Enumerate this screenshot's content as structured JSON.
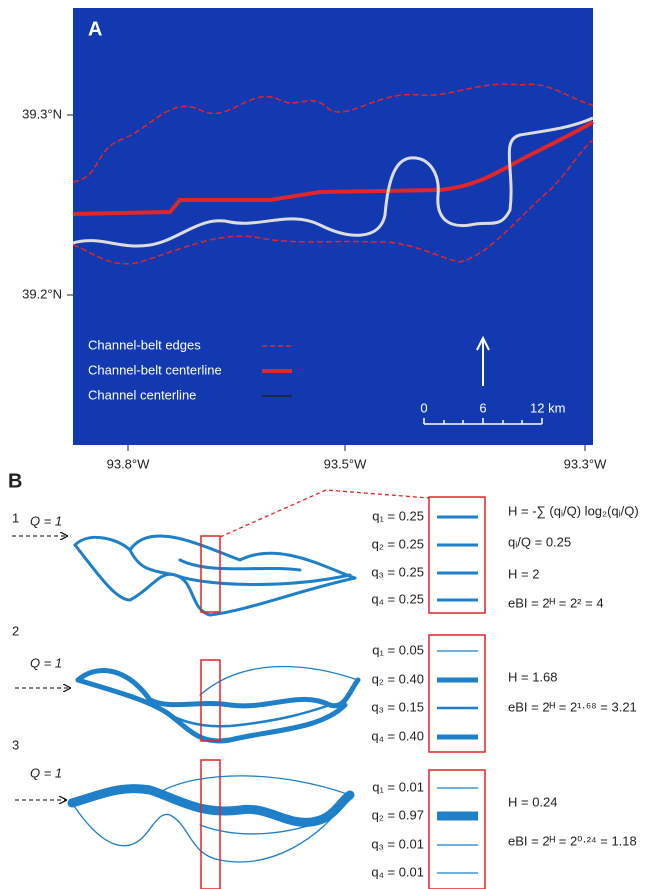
{
  "panel_a": {
    "label": "A",
    "lat_labels": [
      "39.3°N",
      "39.2°N"
    ],
    "lon_labels": [
      "93.8°W",
      "93.5°W",
      "93.3°W"
    ],
    "legend": [
      "Channel-belt edges",
      "Channel-belt centerline",
      "Channel centerline"
    ],
    "scale": [
      "0",
      "6",
      "12 km"
    ]
  },
  "panel_b": {
    "label": "B",
    "rows": [
      {
        "number": "1",
        "inflow": "Q = 1",
        "q": [
          "q₁ = 0.25",
          "q₂ = 0.25",
          "q₃ = 0.25",
          "q₄ = 0.25"
        ],
        "equations": [
          "H = -∑ (qᵢ/Q) log₂(qᵢ/Q)",
          "qᵢ/Q = 0.25",
          "H = 2",
          "eBI = 2ᴴ = 2² = 4"
        ]
      },
      {
        "number": "2",
        "inflow": "Q = 1",
        "q": [
          "q₁ = 0.05",
          "q₂ = 0.40",
          "q₃ = 0.15",
          "q₄ = 0.40"
        ],
        "equations": [
          "H = 1.68",
          "eBI = 2ᴴ = 2¹·⁶⁸ = 3.21"
        ]
      },
      {
        "number": "3",
        "inflow": "Q = 1",
        "q": [
          "q₁ = 0.01",
          "q₂ = 0.97",
          "q₃ = 0.01",
          "q₄ = 0.01"
        ],
        "equations": [
          "H = 0.24",
          "eBI = 2ᴴ = 2⁰·²⁴ = 1.18"
        ]
      }
    ]
  }
}
